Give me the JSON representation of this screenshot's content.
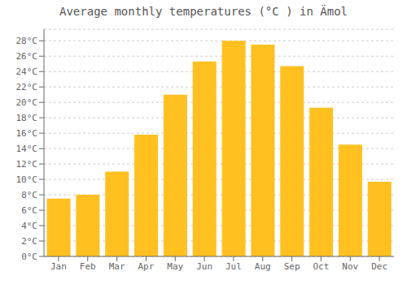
{
  "chart_data": {
    "type": "bar",
    "title": "Average monthly temperatures (°C ) in Ämol",
    "categories": [
      "Jan",
      "Feb",
      "Mar",
      "Apr",
      "May",
      "Jun",
      "Jul",
      "Aug",
      "Sep",
      "Oct",
      "Nov",
      "Dec"
    ],
    "values": [
      7.5,
      8.0,
      11.0,
      15.8,
      21.0,
      25.3,
      28.0,
      27.5,
      24.7,
      19.3,
      14.5,
      9.7
    ],
    "color": "#FFC020",
    "ylim": [
      0,
      29.5
    ],
    "yticks": [
      {
        "value": 0,
        "label": "0°C"
      },
      {
        "value": 2,
        "label": "2°C"
      },
      {
        "value": 4,
        "label": "4°C"
      },
      {
        "value": 6,
        "label": "6°C"
      },
      {
        "value": 8,
        "label": "8°C"
      },
      {
        "value": 10,
        "label": "10°C"
      },
      {
        "value": 12,
        "label": "12°C"
      },
      {
        "value": 14,
        "label": "14°C"
      },
      {
        "value": 16,
        "label": "16°C"
      },
      {
        "value": 18,
        "label": "18°C"
      },
      {
        "value": 20,
        "label": "20°C"
      },
      {
        "value": 22,
        "label": "22°C"
      },
      {
        "value": 24,
        "label": "24°C"
      },
      {
        "value": 26,
        "label": "26°C"
      },
      {
        "value": 28,
        "label": "28°C"
      }
    ],
    "grid": true
  }
}
